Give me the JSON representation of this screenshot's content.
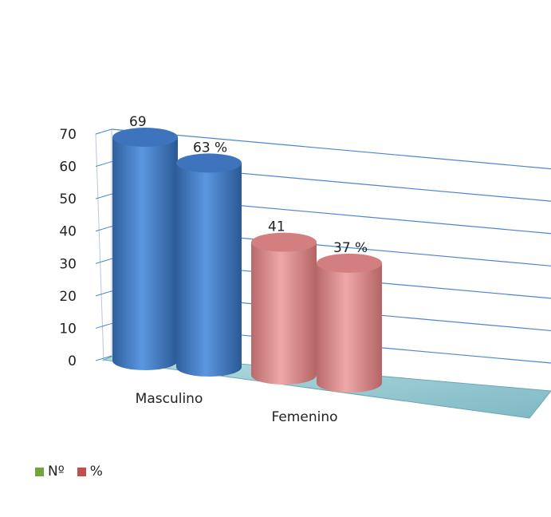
{
  "chart_data": {
    "type": "bar",
    "style": "3d-cylinder",
    "categories": [
      "Masculino",
      "Femenino"
    ],
    "series": [
      {
        "name": "Nº",
        "values": [
          69,
          41
        ],
        "labels": [
          "69",
          "41"
        ]
      },
      {
        "name": "%",
        "values": [
          63,
          37
        ],
        "labels": [
          "63 %",
          "37 %"
        ]
      }
    ],
    "bar_colors": [
      "#4f86d0",
      "#e29494"
    ],
    "ylim": [
      0,
      70
    ],
    "yticks": [
      0,
      10,
      20,
      30,
      40,
      50,
      60,
      70
    ],
    "ytick_labels": [
      "0",
      "10",
      "20",
      "30",
      "40",
      "50",
      "60",
      "70"
    ],
    "grid": true,
    "gridline_color": "#4a86d0",
    "floor_color": "#9ccfd6",
    "legend": {
      "position": "bottom-left",
      "entries": [
        {
          "label": "Nº",
          "color": "#77a33f"
        },
        {
          "label": "%",
          "color": "#c0504d"
        }
      ]
    }
  }
}
